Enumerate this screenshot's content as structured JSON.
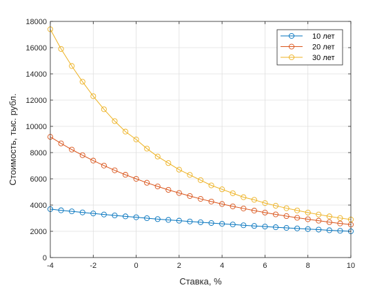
{
  "chart_data": {
    "type": "line",
    "title": "",
    "xlabel": "Ставка, %",
    "ylabel": "Стоимость, тыс. рубл.",
    "xlim": [
      -4,
      10
    ],
    "ylim": [
      0,
      18000
    ],
    "xticks": [
      -4,
      -2,
      0,
      2,
      4,
      6,
      8,
      10
    ],
    "yticks": [
      0,
      2000,
      4000,
      6000,
      8000,
      10000,
      12000,
      14000,
      16000,
      18000
    ],
    "grid": true,
    "legend_position": "top-right",
    "x": [
      -4,
      -3.5,
      -3,
      -2.5,
      -2,
      -1.5,
      -1,
      -0.5,
      0,
      0.5,
      1,
      1.5,
      2,
      2.5,
      3,
      3.5,
      4,
      4.5,
      5,
      5.5,
      6,
      6.5,
      7,
      7.5,
      8,
      8.5,
      9,
      9.5,
      10
    ],
    "series": [
      {
        "name": "10 лет",
        "color": "#0072BD",
        "values": [
          3690,
          3600,
          3520,
          3440,
          3360,
          3280,
          3210,
          3140,
          3070,
          3000,
          2930,
          2870,
          2810,
          2750,
          2690,
          2630,
          2570,
          2520,
          2460,
          2410,
          2360,
          2310,
          2260,
          2220,
          2170,
          2130,
          2080,
          2040,
          2000
        ]
      },
      {
        "name": "20 лет",
        "color": "#D95319",
        "values": [
          9200,
          8700,
          8230,
          7800,
          7390,
          7010,
          6650,
          6310,
          6000,
          5700,
          5420,
          5160,
          4920,
          4690,
          4470,
          4270,
          4080,
          3900,
          3740,
          3580,
          3430,
          3290,
          3160,
          3030,
          2920,
          2810,
          2700,
          2600,
          2510
        ]
      },
      {
        "name": "30 лет",
        "color": "#EDB120",
        "values": [
          17400,
          15900,
          14600,
          13400,
          12300,
          11300,
          10400,
          9600,
          9000,
          8300,
          7700,
          7200,
          6700,
          6300,
          5900,
          5500,
          5200,
          4900,
          4600,
          4400,
          4150,
          3950,
          3760,
          3590,
          3430,
          3280,
          3140,
          3010,
          2900
        ]
      }
    ]
  }
}
